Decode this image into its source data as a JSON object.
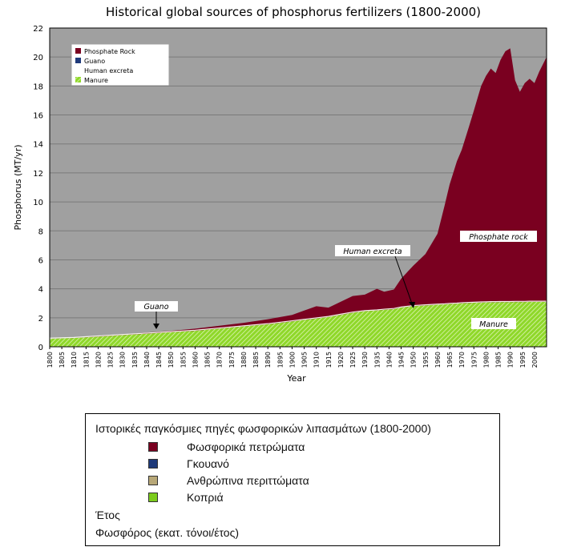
{
  "chart_data": {
    "type": "area",
    "title": "Historical global sources of phosphorus fertilizers (1800-2000)",
    "xlabel": "Year",
    "ylabel": "Phosphorus (MT/yr)",
    "xlim": [
      1800,
      2005
    ],
    "ylim": [
      0,
      22
    ],
    "grid": true,
    "yticks": [
      "0",
      "2",
      "4",
      "6",
      "8",
      "10",
      "12",
      "14",
      "16",
      "18",
      "20",
      "22"
    ],
    "xticks": [
      "1800",
      "1805",
      "1810",
      "1815",
      "1820",
      "1825",
      "1830",
      "1835",
      "1840",
      "1845",
      "1850",
      "1855",
      "1860",
      "1865",
      "1870",
      "1875",
      "1880",
      "1885",
      "1890",
      "1895",
      "1900",
      "1905",
      "1910",
      "1915",
      "1920",
      "1925",
      "1930",
      "1935",
      "1940",
      "1945",
      "1950",
      "1955",
      "1960",
      "1965",
      "1970",
      "1975",
      "1980",
      "1985",
      "1990",
      "1995",
      "2000"
    ],
    "legend": {
      "position": "top-left",
      "entries": [
        "Phosphate Rock",
        "Guano",
        "Human excreta",
        "Manure"
      ]
    },
    "colors": {
      "phosphate_rock": "#7a0020",
      "guano": "#1f3a7a",
      "human_excreta": "#b8a878",
      "manure": "#7ccc1c",
      "background": "#a0a0a0"
    },
    "annotations": {
      "guano": "Guano",
      "human_excreta": "Human excreta",
      "phosphate_rock": "Phosphate rock",
      "manure": "Manure"
    },
    "x": [
      1800,
      1810,
      1820,
      1830,
      1840,
      1850,
      1860,
      1870,
      1880,
      1890,
      1900,
      1905,
      1910,
      1915,
      1920,
      1925,
      1930,
      1935,
      1938,
      1942,
      1945,
      1950,
      1955,
      1960,
      1963,
      1965,
      1968,
      1970,
      1973,
      1975,
      1978,
      1980,
      1982,
      1984,
      1986,
      1988,
      1990,
      1992,
      1994,
      1996,
      1998,
      2000,
      2002,
      2005
    ],
    "series": [
      {
        "name": "Manure",
        "values": [
          0.55,
          0.6,
          0.7,
          0.8,
          0.9,
          1.0,
          1.1,
          1.25,
          1.4,
          1.55,
          1.75,
          1.85,
          1.95,
          2.05,
          2.2,
          2.35,
          2.45,
          2.5,
          2.55,
          2.6,
          2.7,
          2.8,
          2.85,
          2.9,
          2.92,
          2.95,
          2.97,
          3.0,
          3.02,
          3.03,
          3.05,
          3.06,
          3.07,
          3.07,
          3.08,
          3.08,
          3.08,
          3.09,
          3.09,
          3.09,
          3.1,
          3.1,
          3.1,
          3.1
        ]
      },
      {
        "name": "Total",
        "values": [
          0.55,
          0.6,
          0.72,
          0.85,
          0.98,
          1.1,
          1.25,
          1.45,
          1.65,
          1.9,
          2.2,
          2.5,
          2.8,
          2.7,
          3.1,
          3.5,
          3.6,
          4.0,
          3.8,
          3.95,
          4.7,
          5.6,
          6.4,
          7.8,
          9.8,
          11.2,
          12.8,
          13.6,
          15.2,
          16.3,
          18.0,
          18.7,
          19.2,
          18.9,
          19.8,
          20.4,
          20.6,
          18.4,
          17.6,
          18.2,
          18.5,
          18.2,
          19.0,
          20.0
        ]
      }
    ]
  },
  "translation_box": {
    "title": "Ιστορικές παγκόσμιες πηγές φωσφορικών λιπασμάτων (1800-2000)",
    "items": [
      {
        "label": "Φωσφορικά πετρώματα",
        "color": "#7a0020"
      },
      {
        "label": "Γκουανό",
        "color": "#1f3a7a"
      },
      {
        "label": "Ανθρώπινα περιττώματα",
        "color": "#b8a878"
      },
      {
        "label": "Κοπριά",
        "color": "#7ccc1c"
      }
    ],
    "x_axis": "Έτος",
    "y_axis": "Φωσφόρος (εκατ. τόνοι/έτος)"
  }
}
